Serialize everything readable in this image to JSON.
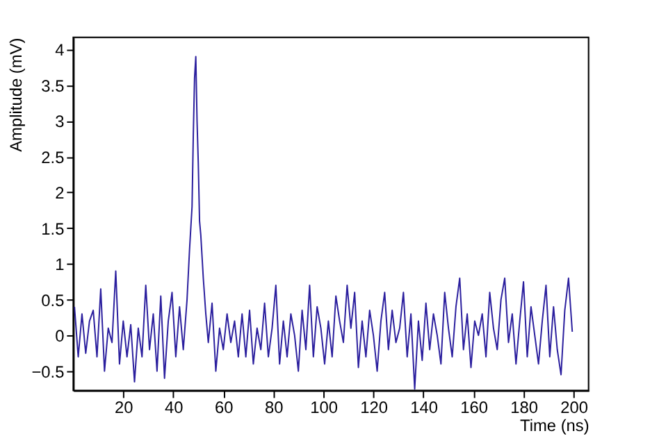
{
  "chart_data": {
    "type": "line",
    "xlabel": "Time (ns)",
    "ylabel": "Amplitude  (mV)",
    "x": [
      0.5,
      2,
      3.5,
      5,
      6.5,
      8,
      9.5,
      11,
      12.5,
      14,
      15.5,
      17,
      18.5,
      20,
      21.5,
      23,
      24.5,
      26,
      27.5,
      29,
      30.5,
      32,
      33.5,
      35,
      36.5,
      38,
      39.5,
      41,
      42.5,
      44,
      45.5,
      46.5,
      47.5,
      48,
      48.5,
      49,
      49.5,
      50,
      50.5,
      51,
      52,
      53,
      54,
      55.5,
      57,
      58.5,
      60,
      61.5,
      63,
      64.5,
      66,
      67.5,
      69,
      70.5,
      72,
      73.5,
      75,
      76.5,
      78,
      79.5,
      81,
      82.5,
      84,
      85.5,
      87,
      88.5,
      90,
      91.5,
      93,
      94.5,
      96,
      97.5,
      99,
      100.5,
      102,
      103.5,
      105,
      106.5,
      108,
      109.5,
      111,
      112.5,
      114,
      115.5,
      117,
      118.5,
      120,
      121.5,
      123,
      124.5,
      126,
      127.5,
      129,
      130.5,
      132,
      133.5,
      135,
      136.5,
      138,
      139.5,
      141,
      142.5,
      144,
      145.5,
      147,
      148.5,
      150,
      151.5,
      153,
      154.5,
      156,
      157.5,
      159,
      160.5,
      162,
      163.5,
      165,
      166.5,
      168,
      169.5,
      171,
      172.5,
      174,
      175.5,
      177,
      178.5,
      180,
      181.5,
      183,
      184.5,
      186,
      187.5,
      189,
      190.5,
      192,
      193.5,
      195,
      196.5,
      198,
      199.5
    ],
    "series": [
      {
        "color": "#2b1f9e",
        "values": [
          0.4,
          -0.3,
          0.3,
          -0.25,
          0.2,
          0.35,
          -0.3,
          0.65,
          -0.5,
          0.1,
          -0.1,
          0.9,
          -0.4,
          0.2,
          -0.3,
          0.15,
          -0.65,
          0.1,
          -0.3,
          0.7,
          -0.2,
          0.3,
          -0.5,
          0.55,
          -0.6,
          0.2,
          0.6,
          -0.3,
          0.4,
          -0.2,
          0.5,
          1.2,
          1.8,
          2.8,
          3.6,
          3.9,
          3.0,
          2.4,
          1.6,
          1.4,
          0.8,
          0.3,
          -0.1,
          0.45,
          -0.5,
          0.1,
          -0.2,
          0.3,
          -0.1,
          0.2,
          -0.3,
          0.3,
          -0.3,
          0.35,
          -0.4,
          0.1,
          -0.2,
          0.45,
          -0.3,
          0.1,
          0.7,
          -0.4,
          0.2,
          -0.3,
          0.3,
          0.0,
          -0.5,
          0.35,
          -0.2,
          0.7,
          -0.3,
          0.4,
          0.1,
          -0.4,
          0.2,
          -0.3,
          0.55,
          0.2,
          -0.1,
          0.7,
          0.1,
          0.6,
          -0.45,
          0.2,
          -0.3,
          0.35,
          0.0,
          -0.5,
          0.2,
          0.6,
          -0.2,
          0.35,
          -0.1,
          0.1,
          0.6,
          -0.3,
          0.3,
          -0.75,
          0.2,
          -0.35,
          0.45,
          -0.2,
          0.3,
          0.0,
          -0.4,
          0.6,
          0.1,
          -0.3,
          0.4,
          0.8,
          -0.2,
          0.3,
          -0.45,
          0.2,
          0.0,
          0.3,
          -0.3,
          0.6,
          0.1,
          -0.2,
          0.5,
          0.8,
          -0.1,
          0.3,
          -0.4,
          0.2,
          0.75,
          -0.3,
          0.4,
          0.0,
          -0.4,
          0.2,
          0.7,
          -0.3,
          0.4,
          -0.2,
          -0.55,
          0.35,
          0.8,
          0.05
        ]
      }
    ],
    "xlim": [
      0,
      206
    ],
    "ylim": [
      -0.77,
      4.17
    ],
    "xticks": [
      20,
      40,
      60,
      80,
      100,
      120,
      140,
      160,
      180,
      200
    ],
    "yticks": [
      -0.5,
      0,
      0.5,
      1,
      1.5,
      2,
      2.5,
      3,
      3.5,
      4
    ],
    "grid": false,
    "marker": "none",
    "line_style": "solid"
  }
}
